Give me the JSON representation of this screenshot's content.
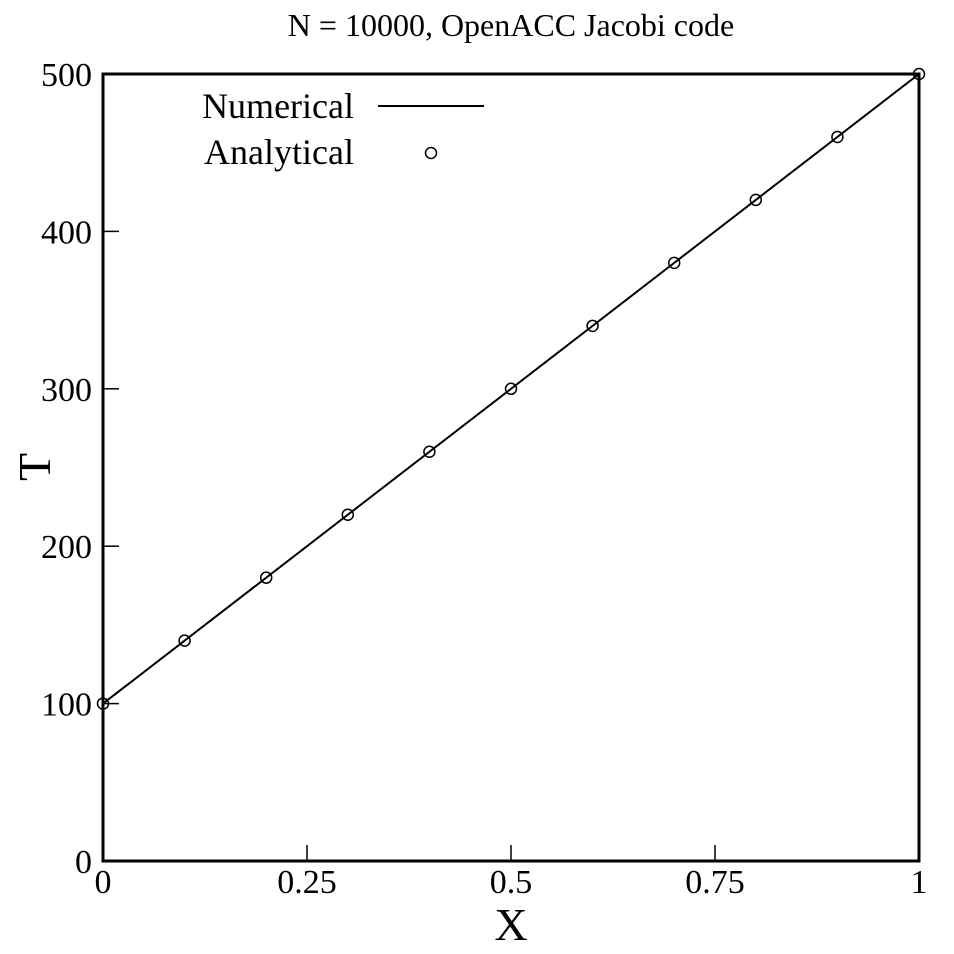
{
  "chart_data": {
    "type": "line",
    "title": "N = 10000, OpenACC Jacobi code",
    "xlabel": "X",
    "ylabel": "T",
    "xlim": [
      0,
      1
    ],
    "ylim": [
      0,
      500
    ],
    "xticks": [
      0,
      0.25,
      0.5,
      0.75,
      1
    ],
    "xtick_labels": [
      "0",
      "0.25",
      "0.5",
      "0.75",
      "1"
    ],
    "yticks": [
      0,
      100,
      200,
      300,
      400,
      500
    ],
    "ytick_labels": [
      "0",
      "100",
      "200",
      "300",
      "400",
      "500"
    ],
    "grid": false,
    "legend_position": "top-left",
    "series": [
      {
        "name": "Numerical",
        "style": "line",
        "x": [
          0,
          1
        ],
        "y": [
          100,
          500
        ]
      },
      {
        "name": "Analytical",
        "style": "circle-markers",
        "x": [
          0,
          0.1,
          0.2,
          0.3,
          0.4,
          0.5,
          0.6,
          0.7,
          0.8,
          0.9,
          1.0
        ],
        "y": [
          100,
          140,
          180,
          220,
          260,
          300,
          340,
          380,
          420,
          460,
          500
        ]
      }
    ]
  }
}
